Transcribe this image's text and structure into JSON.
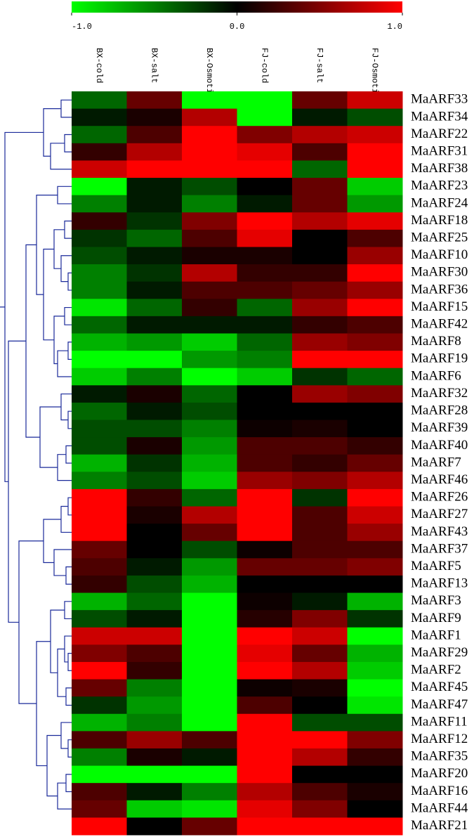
{
  "chart_data": {
    "type": "heatmap",
    "columns": [
      "BX-cold",
      "BX-salt",
      "BX-Osmotic",
      "FJ-cold",
      "FJ-salt",
      "FJ-Osmotic"
    ],
    "rows": [
      "MaARF33",
      "MaARF34",
      "MaARF22",
      "MaARF31",
      "MaARF38",
      "MaARF23",
      "MaARF24",
      "MaARF18",
      "MaARF25",
      "MaARF10",
      "MaARF30",
      "MaARF36",
      "MaARF15",
      "MaARF42",
      "MaARF8",
      "MaARF19",
      "MaARF6",
      "MaARF32",
      "MaARF28",
      "MaARF39",
      "MaARF40",
      "MaARF7",
      "MaARF46",
      "MaARF26",
      "MaARF27",
      "MaARF43",
      "MaARF37",
      "MaARF5",
      "MaARF13",
      "MaARF3",
      "MaARF9",
      "MaARF1",
      "MaARF29",
      "MaARF2",
      "MaARF45",
      "MaARF47",
      "MaARF11",
      "MaARF12",
      "MaARF35",
      "MaARF20",
      "MaARF16",
      "MaARF44",
      "MaARF21"
    ],
    "values": [
      [
        -0.4,
        0.4,
        -1,
        -1,
        0.4,
        0.8
      ],
      [
        -0.1,
        0.1,
        0.7,
        -1,
        -0.1,
        -0.3
      ],
      [
        -0.4,
        0.3,
        1,
        0.5,
        0.7,
        0.8
      ],
      [
        0.2,
        0.7,
        1,
        0.9,
        0.3,
        1
      ],
      [
        0.8,
        1,
        1,
        1,
        -0.4,
        1
      ],
      [
        -1,
        -0.1,
        -0.3,
        0,
        0.4,
        -0.8
      ],
      [
        -0.5,
        -0.1,
        -0.5,
        -0.1,
        0.4,
        -0.6
      ],
      [
        0.2,
        -0.2,
        0.5,
        1,
        0.7,
        0.9
      ],
      [
        -0.2,
        -0.4,
        0.3,
        0.9,
        0,
        0.3
      ],
      [
        -0.3,
        -0.1,
        0.1,
        0.1,
        0,
        0.6
      ],
      [
        -0.5,
        -0.2,
        0.7,
        0.2,
        0.2,
        1
      ],
      [
        -0.5,
        -0.1,
        0.3,
        0.3,
        0.4,
        0.6
      ],
      [
        -0.9,
        -0.4,
        0.2,
        -0.4,
        0.6,
        1
      ],
      [
        -0.4,
        -0.1,
        -0.1,
        -0.1,
        0.2,
        0.3
      ],
      [
        -0.7,
        -0.6,
        -0.8,
        -0.4,
        0.6,
        0.5
      ],
      [
        -1,
        -1,
        -0.6,
        -0.5,
        1,
        1
      ],
      [
        -0.8,
        -0.5,
        -1,
        -0.8,
        -0.2,
        -0.4
      ],
      [
        -0.1,
        0.1,
        -0.4,
        0,
        0.6,
        0.5
      ],
      [
        -0.4,
        -0.1,
        -0.3,
        0,
        0,
        0
      ],
      [
        -0.3,
        -0.3,
        -0.5,
        0.05,
        0.1,
        0
      ],
      [
        -0.3,
        0.1,
        -0.6,
        0.3,
        0.3,
        0.2
      ],
      [
        -0.7,
        -0.2,
        -0.7,
        0.3,
        0.2,
        0.4
      ],
      [
        -0.5,
        -0.3,
        -0.8,
        0.6,
        0.5,
        0.7
      ],
      [
        1,
        0.2,
        -0.4,
        1,
        -0.2,
        1
      ],
      [
        1,
        0.1,
        0.7,
        1,
        0.3,
        0.8
      ],
      [
        1,
        0,
        0.4,
        1,
        0.3,
        0.6
      ],
      [
        0.4,
        0,
        -0.3,
        0.05,
        0.3,
        0.3
      ],
      [
        0.3,
        -0.1,
        -0.6,
        0.4,
        0.4,
        0.5
      ],
      [
        0.2,
        -0.3,
        -0.7,
        0,
        0,
        0
      ],
      [
        -0.7,
        -0.4,
        -1,
        0.05,
        -0.1,
        -0.7
      ],
      [
        -0.3,
        -0.1,
        -1,
        0.15,
        0.5,
        -0.2
      ],
      [
        0.8,
        0.8,
        -1,
        1,
        0.8,
        -1
      ],
      [
        0.5,
        0.3,
        -1,
        0.9,
        0.4,
        -0.7
      ],
      [
        1,
        0.2,
        -1,
        1,
        0.7,
        -0.8
      ],
      [
        0.4,
        -0.5,
        -1,
        0.05,
        0.1,
        -1
      ],
      [
        -0.2,
        -0.6,
        -1,
        0.3,
        0,
        -0.9
      ],
      [
        -0.7,
        -0.5,
        -1,
        1,
        -0.3,
        -0.3
      ],
      [
        0.3,
        0.6,
        0.3,
        1,
        1,
        0.5
      ],
      [
        -0.5,
        0.1,
        -0.1,
        1,
        0.7,
        0.2
      ],
      [
        -1,
        -1,
        -1,
        1,
        0,
        0
      ],
      [
        0.3,
        -0.1,
        -0.5,
        0.7,
        0.3,
        0.1
      ],
      [
        0.4,
        -0.8,
        -0.9,
        0.9,
        0.5,
        0
      ],
      [
        1,
        0,
        0.4,
        1,
        1,
        1
      ]
    ],
    "vlim": [
      -1,
      1
    ],
    "colorbar_ticks": [
      {
        "value": -1,
        "label": "-1.0"
      },
      {
        "value": 0,
        "label": "0.0"
      },
      {
        "value": 1,
        "label": "1.0"
      }
    ],
    "colormap": [
      "#00ff00",
      "#000000",
      "#ff0000"
    ]
  }
}
